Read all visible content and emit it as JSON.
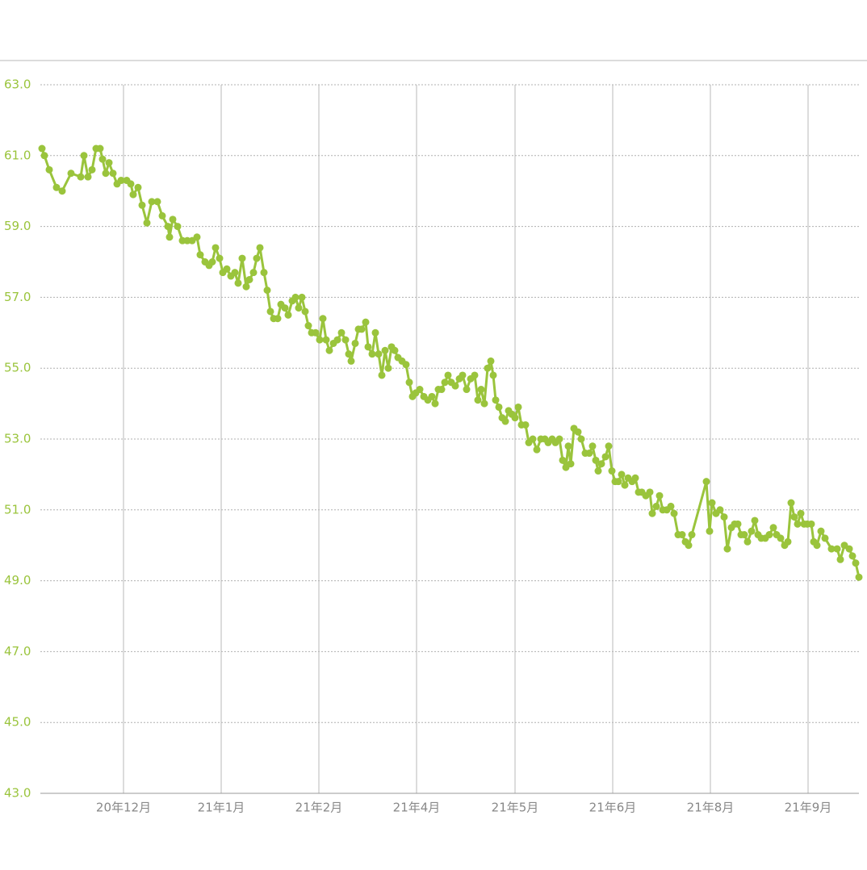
{
  "chart_data": {
    "type": "line",
    "x": [
      2,
      5,
      11,
      20,
      27,
      38,
      50,
      54,
      59,
      64,
      69,
      74,
      77,
      81,
      85,
      90,
      95,
      100,
      107,
      112,
      115,
      121,
      126,
      132,
      138,
      145,
      151,
      158,
      160,
      164,
      170,
      176,
      182,
      188,
      194,
      198,
      204,
      209,
      213,
      217,
      222,
      226,
      231,
      236,
      241,
      245,
      250,
      255,
      259,
      264,
      268,
      272,
      277,
      281,
      285,
      289,
      294,
      298,
      303,
      307,
      312,
      316,
      320,
      324,
      328,
      332,
      336,
      341,
      346,
      350,
      354,
      358,
      363,
      368,
      373,
      378,
      382,
      385,
      390,
      394,
      398,
      403,
      406,
      411,
      415,
      419,
      423,
      427,
      431,
      435,
      439,
      443,
      448,
      453,
      457,
      461,
      465,
      470,
      475,
      480,
      485,
      489,
      493,
      497,
      501,
      505,
      509,
      514,
      519,
      523,
      528,
      533,
      538,
      542,
      546,
      550,
      554,
      558,
      561,
      564,
      568,
      572,
      576,
      580,
      584,
      588,
      592,
      596,
      601,
      605,
      610,
      615,
      620,
      625,
      629,
      634,
      638,
      643,
      647,
      651,
      654,
      657,
      661,
      666,
      670,
      675,
      680,
      684,
      688,
      691,
      695,
      700,
      704,
      708,
      712,
      716,
      720,
      724,
      728,
      733,
      737,
      741,
      745,
      750,
      755,
      758,
      763,
      767,
      771,
      776,
      781,
      785,
      790,
      795,
      799,
      803,
      807,
      825,
      829,
      832,
      837,
      842,
      847,
      851,
      856,
      860,
      864,
      868,
      872,
      876,
      881,
      885,
      889,
      893,
      898,
      903,
      908,
      912,
      917,
      922,
      926,
      930,
      934,
      938,
      942,
      946,
      950,
      955,
      958,
      962,
      967,
      972,
      980,
      987,
      991,
      996,
      1002,
      1006,
      1010,
      1014
    ],
    "series": [
      {
        "color": "#9ac43c",
        "values": [
          61.2,
          61.0,
          60.6,
          60.1,
          60.0,
          60.5,
          60.4,
          61.0,
          60.4,
          60.6,
          61.2,
          61.2,
          60.9,
          60.5,
          60.8,
          60.5,
          60.2,
          60.3,
          60.3,
          60.2,
          59.9,
          60.1,
          59.6,
          59.1,
          59.7,
          59.7,
          59.3,
          59.0,
          58.7,
          59.2,
          59.0,
          58.6,
          58.6,
          58.6,
          58.7,
          58.2,
          58.0,
          57.9,
          58.0,
          58.4,
          58.1,
          57.7,
          57.8,
          57.6,
          57.7,
          57.4,
          58.1,
          57.3,
          57.5,
          57.7,
          58.1,
          58.4,
          57.7,
          57.2,
          56.6,
          56.4,
          56.4,
          56.8,
          56.7,
          56.5,
          56.9,
          57.0,
          56.7,
          57.0,
          56.6,
          56.2,
          56.0,
          56.0,
          55.8,
          56.4,
          55.8,
          55.5,
          55.7,
          55.8,
          56.0,
          55.8,
          55.4,
          55.2,
          55.7,
          56.1,
          56.1,
          56.3,
          55.6,
          55.4,
          56.0,
          55.4,
          54.8,
          55.5,
          55.0,
          55.6,
          55.5,
          55.3,
          55.2,
          55.1,
          54.6,
          54.2,
          54.3,
          54.4,
          54.2,
          54.1,
          54.2,
          54.0,
          54.4,
          54.4,
          54.6,
          54.8,
          54.6,
          54.5,
          54.7,
          54.8,
          54.4,
          54.7,
          54.8,
          54.1,
          54.4,
          54.0,
          55.0,
          55.2,
          54.8,
          54.1,
          53.9,
          53.6,
          53.5,
          53.8,
          53.7,
          53.6,
          53.9,
          53.4,
          53.4,
          52.9,
          53.0,
          52.7,
          53.0,
          53.0,
          52.9,
          53.0,
          52.9,
          53.0,
          52.4,
          52.2,
          52.8,
          52.3,
          53.3,
          53.2,
          53.0,
          52.6,
          52.6,
          52.8,
          52.4,
          52.1,
          52.3,
          52.5,
          52.8,
          52.1,
          51.8,
          51.8,
          52.0,
          51.7,
          51.9,
          51.8,
          51.9,
          51.5,
          51.5,
          51.4,
          51.5,
          50.9,
          51.1,
          51.4,
          51.0,
          51.0,
          51.1,
          50.9,
          50.3,
          50.3,
          50.1,
          50.0,
          50.3,
          51.8,
          50.4,
          51.2,
          50.9,
          51.0,
          50.8,
          49.9,
          50.5,
          50.6,
          50.6,
          50.3,
          50.3,
          50.1,
          50.4,
          50.7,
          50.3,
          50.2,
          50.2,
          50.3,
          50.5,
          50.3,
          50.2,
          50.0,
          50.1,
          51.2,
          50.8,
          50.6,
          50.9,
          50.6,
          50.6,
          50.6,
          50.1,
          50.0,
          50.4,
          50.2,
          49.9,
          49.9,
          49.6,
          50.0,
          49.9,
          49.7,
          49.5,
          49.1
        ]
      }
    ],
    "xlim": [
      0,
      1014
    ],
    "xticks": [
      {
        "value": 103,
        "label": "20年12月"
      },
      {
        "value": 224,
        "label": "21年1月"
      },
      {
        "value": 345,
        "label": "21年2月"
      },
      {
        "value": 466,
        "label": "21年4月"
      },
      {
        "value": 588,
        "label": "21年5月"
      },
      {
        "value": 709,
        "label": "21年6月"
      },
      {
        "value": 830,
        "label": "21年8月"
      },
      {
        "value": 951,
        "label": "21年9月"
      }
    ],
    "ylim": [
      43,
      63
    ],
    "yticks": [
      {
        "value": 63,
        "label": "63.0"
      },
      {
        "value": 61,
        "label": "61.0"
      },
      {
        "value": 59,
        "label": "59.0"
      },
      {
        "value": 57,
        "label": "57.0"
      },
      {
        "value": 55,
        "label": "55.0"
      },
      {
        "value": 53,
        "label": "53.0"
      },
      {
        "value": 51,
        "label": "51.0"
      },
      {
        "value": 49,
        "label": "49.0"
      },
      {
        "value": 47,
        "label": "47.0"
      },
      {
        "value": 45,
        "label": "45.0"
      },
      {
        "value": 43,
        "label": "43.0"
      }
    ],
    "grid": true
  }
}
